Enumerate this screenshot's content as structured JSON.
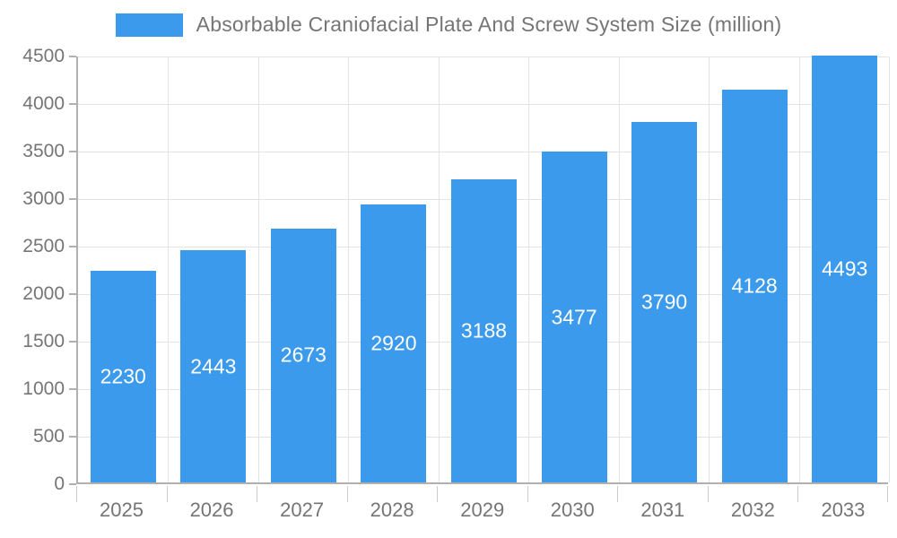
{
  "legend": {
    "label": "Absorbable Craniofacial Plate And Screw System Size (million)",
    "swatch_color": "#3b9aeb"
  },
  "chart_data": {
    "type": "bar",
    "title": "Absorbable Craniofacial Plate And Screw System Size (million)",
    "categories": [
      "2025",
      "2026",
      "2027",
      "2028",
      "2029",
      "2030",
      "2031",
      "2032",
      "2033"
    ],
    "values": [
      2230,
      2443,
      2673,
      2920,
      3188,
      3477,
      3790,
      4128,
      4493
    ],
    "xlabel": "",
    "ylabel": "",
    "ylim": [
      0,
      4500
    ],
    "ytick_step": 500,
    "ytick_labels": [
      "0",
      "500",
      "1000",
      "1500",
      "2000",
      "2500",
      "3000",
      "3500",
      "4000",
      "4500"
    ],
    "grid": true,
    "legend_position": "top-center",
    "bar_color": "#3b9aeb",
    "bar_label_color": "#ffffff",
    "axis_color": "#b0b0b0",
    "grid_color": "#e3e3e3",
    "tick_label_color": "#757575"
  }
}
